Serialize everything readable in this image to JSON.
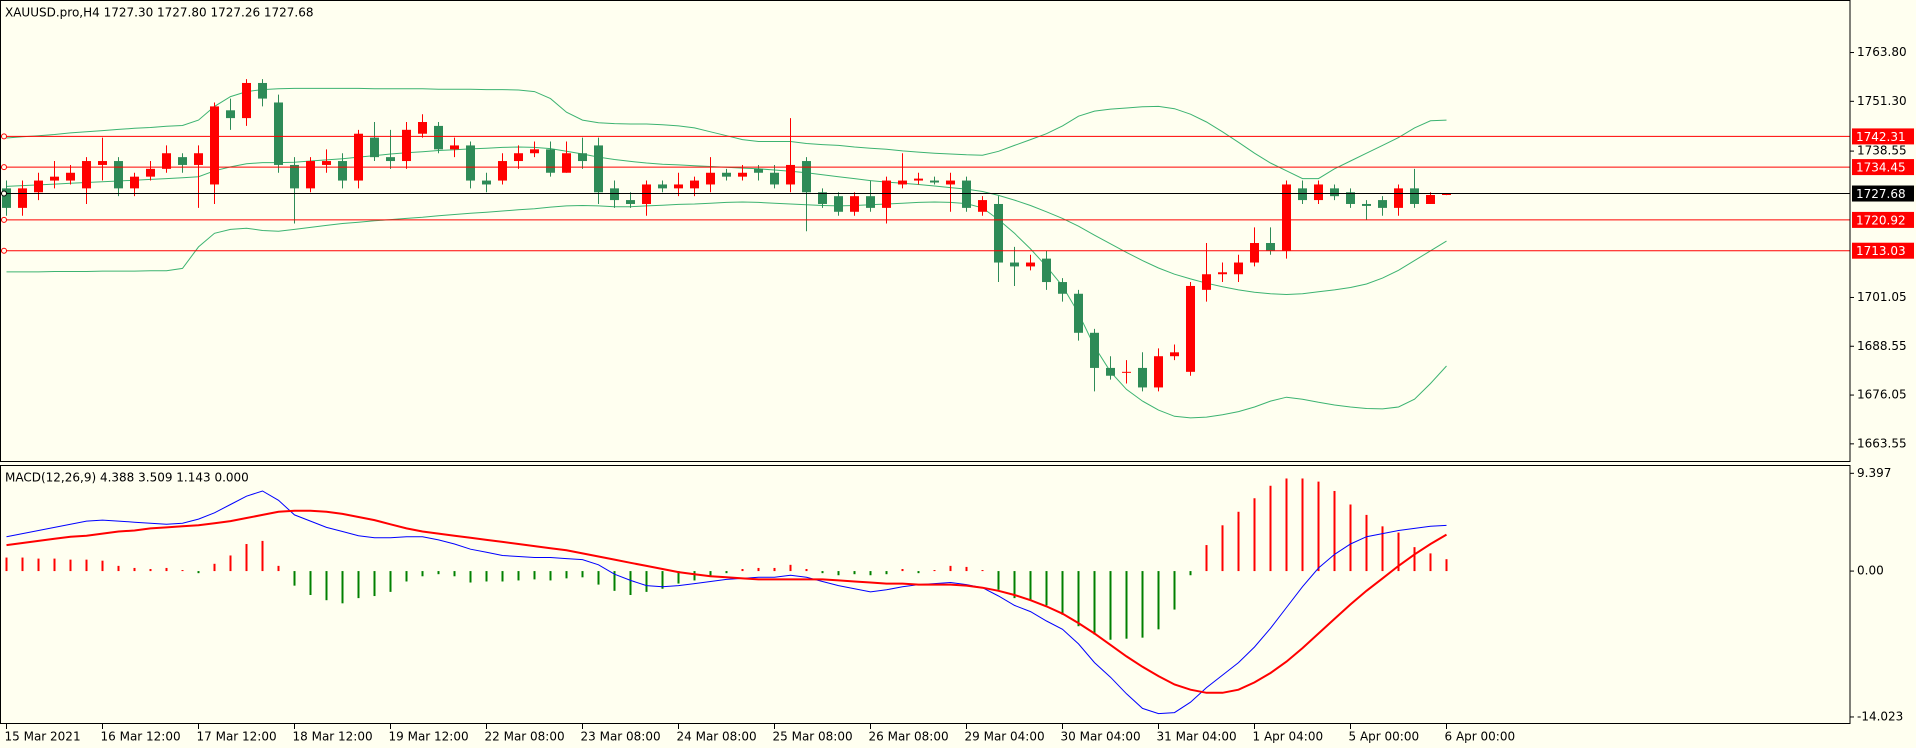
{
  "chart_data": [
    {
      "type": "candlestick",
      "title": "XAUUSD.pro,H4  1727.30 1727.80 1727.26 1727.68",
      "categories": [
        "15 Mar 2021",
        null,
        null,
        null,
        null,
        null,
        "16 Mar 12:00",
        null,
        null,
        null,
        null,
        null,
        "17 Mar 12:00",
        null,
        null,
        null,
        null,
        null,
        "18 Mar 12:00",
        null,
        null,
        null,
        null,
        null,
        "19 Mar 12:00",
        null,
        null,
        null,
        null,
        null,
        "22 Mar 08:00",
        null,
        null,
        null,
        null,
        null,
        "23 Mar 08:00",
        null,
        null,
        null,
        null,
        null,
        "24 Mar 08:00",
        null,
        null,
        null,
        null,
        null,
        "25 Mar 08:00",
        null,
        null,
        null,
        null,
        null,
        "26 Mar 08:00",
        null,
        null,
        null,
        null,
        null,
        "29 Mar 04:00",
        null,
        null,
        null,
        null,
        null,
        "30 Mar 04:00",
        null,
        null,
        null,
        null,
        null,
        "31 Mar 04:00",
        null,
        null,
        null,
        null,
        null,
        "1 Apr 04:00",
        null,
        null,
        null,
        null,
        null,
        "5 Apr 00:00",
        null,
        null,
        null,
        null,
        null,
        "6 Apr 00:00"
      ],
      "open": [
        1729,
        1724,
        1728,
        1731,
        1731,
        1729,
        1735,
        1736,
        1729,
        1732,
        1734,
        1737,
        1735,
        1730,
        1749,
        1747,
        1756,
        1751,
        1735,
        1729,
        1735,
        1736,
        1731,
        1742,
        1737,
        1736,
        1743,
        1745,
        1739,
        1740,
        1731,
        1731,
        1736,
        1738,
        1739,
        1733,
        1738,
        1740,
        1729,
        1726,
        1725,
        1730,
        1729,
        1729,
        1730,
        1733,
        1732,
        1734,
        1733,
        1730,
        1736,
        1728,
        1727,
        1723,
        1727,
        1724,
        1730,
        1731,
        1731,
        1730,
        1731,
        1723,
        1725,
        1710,
        1709,
        1711,
        1705,
        1702,
        1692,
        1683,
        1682,
        1683,
        1678,
        1686,
        1682,
        1703,
        1707,
        1707,
        1710,
        1715,
        1713,
        1729,
        1726,
        1729,
        1728,
        1725,
        1726,
        1724,
        1729,
        1725,
        1727.3
      ],
      "high": [
        1731,
        1731,
        1733,
        1736,
        1735,
        1737,
        1742,
        1737,
        1733,
        1736,
        1740,
        1738,
        1740,
        1751,
        1752,
        1757,
        1757,
        1753,
        1737,
        1737,
        1739,
        1738,
        1744,
        1746,
        1744,
        1746,
        1748,
        1746,
        1742,
        1741,
        1733,
        1738,
        1740,
        1741,
        1741,
        1741,
        1742,
        1742,
        1731,
        1728,
        1731,
        1731,
        1733,
        1732,
        1737,
        1734,
        1735,
        1735,
        1735,
        1747,
        1737,
        1729,
        1728,
        1728,
        1731,
        1732,
        1738,
        1733,
        1732,
        1733,
        1732,
        1727,
        1727,
        1714,
        1712,
        1713,
        1706,
        1703,
        1693,
        1686,
        1685,
        1687,
        1688,
        1689,
        1705,
        1715,
        1710,
        1712,
        1719,
        1719,
        1731,
        1731,
        1731,
        1730,
        1729,
        1726,
        1727,
        1730,
        1734,
        1728,
        1727.8
      ],
      "low": [
        1722,
        1722,
        1726,
        1729,
        1730,
        1725,
        1731,
        1727,
        1727,
        1731,
        1733,
        1733,
        1724,
        1725,
        1744,
        1745,
        1750,
        1733,
        1720,
        1728,
        1733,
        1729,
        1729,
        1736,
        1734,
        1734,
        1742,
        1738,
        1737,
        1729,
        1728,
        1730,
        1734,
        1737,
        1732,
        1733,
        1734,
        1725,
        1724,
        1724,
        1722,
        1728,
        1727,
        1727,
        1728,
        1731,
        1731,
        1731,
        1729,
        1728,
        1718,
        1724,
        1722,
        1722,
        1723,
        1720,
        1729,
        1730,
        1730,
        1723,
        1723,
        1722,
        1705,
        1704,
        1708,
        1703,
        1700,
        1690,
        1677,
        1680,
        1679,
        1677,
        1677,
        1685,
        1681,
        1700,
        1705,
        1705,
        1709,
        1712,
        1711,
        1725,
        1725,
        1726,
        1724,
        1721,
        1722,
        1722,
        1724,
        1725,
        1727.26
      ],
      "close": [
        1724,
        1729,
        1731,
        1732,
        1733,
        1736,
        1736,
        1729,
        1732,
        1734,
        1738,
        1735,
        1738,
        1750,
        1747,
        1756,
        1752,
        1735,
        1729,
        1736,
        1736,
        1731,
        1743,
        1737,
        1736,
        1744,
        1746,
        1739,
        1740,
        1731,
        1730,
        1736,
        1738,
        1739,
        1733,
        1738,
        1736,
        1728,
        1726,
        1725,
        1730,
        1729,
        1730,
        1731,
        1733,
        1732,
        1733,
        1733,
        1730,
        1735,
        1728,
        1725,
        1723,
        1727,
        1724,
        1731,
        1731,
        1731.5,
        1730.5,
        1731,
        1724,
        1726,
        1710,
        1709,
        1710,
        1705,
        1702,
        1692,
        1683,
        1681,
        1682,
        1678,
        1686,
        1687,
        1704,
        1707,
        1707.5,
        1710,
        1715,
        1713,
        1730,
        1726,
        1730,
        1727,
        1725,
        1724.5,
        1724,
        1729,
        1725,
        1727.3,
        1727.68
      ],
      "up_color": "#ff0000",
      "down_color": "#2e8b57",
      "bands": [
        {
          "color": "#3cb371",
          "values": [
            1741.9,
            1742.2,
            1742.5,
            1742.8,
            1743.2,
            1743.5,
            1743.8,
            1744.1,
            1744.4,
            1744.6,
            1744.9,
            1745.1,
            1746.5,
            1750.0,
            1752.5,
            1753.8,
            1754.3,
            1754.5,
            1754.6,
            1754.6,
            1754.6,
            1754.6,
            1754.6,
            1754.5,
            1754.5,
            1754.5,
            1754.5,
            1754.4,
            1754.4,
            1754.4,
            1754.3,
            1754.3,
            1754.2,
            1753.8,
            1752.0,
            1748.5,
            1746.5,
            1745.8,
            1745.6,
            1745.5,
            1745.5,
            1745.3,
            1745.0,
            1744.5,
            1743.5,
            1742.5,
            1741.5,
            1741.0,
            1741.0,
            1741.0,
            1740.5,
            1740.2,
            1740.0,
            1739.6,
            1739.3,
            1739.0,
            1738.6,
            1738.3,
            1738.0,
            1737.8,
            1737.6,
            1737.5,
            1738.5,
            1740.0,
            1741.5,
            1743.0,
            1745.0,
            1747.5,
            1748.8,
            1749.3,
            1749.6,
            1749.9,
            1750.0,
            1749.4,
            1748.0,
            1746.0,
            1743.5,
            1740.8,
            1738.0,
            1735.5,
            1733.5,
            1731.5,
            1731.5,
            1734.0,
            1736.0,
            1738.0,
            1740.0,
            1742.0,
            1744.5,
            1746.3,
            1746.5
          ]
        },
        {
          "color": "#3cb371",
          "values": [
            1729.5,
            1729.7,
            1729.9,
            1730.1,
            1730.3,
            1730.5,
            1730.7,
            1730.9,
            1731.1,
            1731.3,
            1731.5,
            1731.7,
            1732.0,
            1733.5,
            1734.5,
            1735.3,
            1735.6,
            1735.6,
            1735.7,
            1736.0,
            1736.3,
            1736.6,
            1737.0,
            1737.4,
            1737.8,
            1738.1,
            1738.4,
            1738.7,
            1738.9,
            1739.1,
            1739.3,
            1739.5,
            1739.6,
            1739.5,
            1739.2,
            1738.5,
            1737.8,
            1737.0,
            1736.4,
            1735.9,
            1735.5,
            1735.2,
            1735.0,
            1734.8,
            1734.6,
            1734.4,
            1734.2,
            1734.0,
            1733.7,
            1733.4,
            1733.0,
            1732.5,
            1732.0,
            1731.5,
            1731.0,
            1730.6,
            1730.3,
            1730.0,
            1729.6,
            1729.2,
            1728.8,
            1728.2,
            1727.2,
            1726.0,
            1724.6,
            1723.0,
            1721.3,
            1719.3,
            1717.0,
            1714.8,
            1712.6,
            1710.5,
            1708.6,
            1707.0,
            1705.8,
            1704.7,
            1703.8,
            1703.0,
            1702.4,
            1702.0,
            1701.8,
            1702.0,
            1702.5,
            1703.0,
            1703.6,
            1704.5,
            1706.0,
            1708.0,
            1710.5,
            1713.0,
            1715.5
          ]
        },
        {
          "color": "#3cb371",
          "values": [
            1707.6,
            1707.6,
            1707.6,
            1707.7,
            1707.7,
            1707.7,
            1707.8,
            1707.8,
            1707.8,
            1707.9,
            1707.9,
            1708.5,
            1714.0,
            1717.5,
            1718.5,
            1718.8,
            1718.2,
            1718.0,
            1718.5,
            1719.0,
            1719.5,
            1720.0,
            1720.3,
            1720.7,
            1721.0,
            1721.3,
            1721.6,
            1722.0,
            1722.3,
            1722.6,
            1722.9,
            1723.2,
            1723.5,
            1723.8,
            1724.2,
            1724.5,
            1724.6,
            1724.5,
            1724.3,
            1724.3,
            1724.5,
            1724.7,
            1724.9,
            1725.0,
            1725.2,
            1725.4,
            1725.5,
            1725.4,
            1725.2,
            1725.0,
            1724.8,
            1724.6,
            1724.5,
            1724.6,
            1724.8,
            1725.0,
            1725.2,
            1725.4,
            1725.5,
            1725.4,
            1725.1,
            1724.0,
            1721.0,
            1717.5,
            1713.5,
            1709.0,
            1704.0,
            1697.0,
            1688.5,
            1682.0,
            1677.5,
            1674.5,
            1672.2,
            1670.6,
            1670.2,
            1670.4,
            1671.0,
            1671.8,
            1673.0,
            1674.5,
            1675.5,
            1675.0,
            1674.2,
            1673.5,
            1673.0,
            1672.6,
            1672.5,
            1673.0,
            1675.0,
            1679.0,
            1683.5
          ]
        }
      ],
      "levels": [
        {
          "value": 1742.31,
          "color": "#ff0000"
        },
        {
          "value": 1734.45,
          "color": "#ff0000"
        },
        {
          "value": 1720.92,
          "color": "#ff0000"
        },
        {
          "value": 1713.03,
          "color": "#ff0000"
        }
      ],
      "current": {
        "value": 1727.68,
        "color": "#000000"
      },
      "ylim": [
        1658.9,
        1777.0
      ],
      "yticks": [
        {
          "value": 1763.8,
          "label": "1763.80"
        },
        {
          "value": 1751.3,
          "label": "1751.30"
        },
        1738.55,
        1701.05,
        1688.55,
        1676.05,
        1663.55
      ]
    },
    {
      "type": "macd",
      "title": "MACD(12,26,9) 4.388 3.509 1.143 0.000",
      "histogram": {
        "up_color": "#ff0000",
        "down_color": "#008000",
        "values": [
          1.3,
          1.3,
          1.2,
          1.2,
          1.1,
          1.1,
          1.0,
          0.5,
          0.3,
          0.2,
          0.3,
          0.1,
          -0.2,
          0.7,
          1.5,
          2.6,
          2.9,
          0.5,
          -1.4,
          -2.3,
          -2.8,
          -3.1,
          -2.6,
          -2.4,
          -2.0,
          -1.0,
          -0.5,
          -0.3,
          -0.5,
          -1.1,
          -1.0,
          -1.0,
          -0.9,
          -0.8,
          -0.9,
          -0.7,
          -0.6,
          -1.3,
          -1.9,
          -2.3,
          -2.0,
          -1.7,
          -1.2,
          -0.9,
          -0.5,
          -0.2,
          0.2,
          0.3,
          0.3,
          0.6,
          0.2,
          -0.2,
          -0.4,
          -0.3,
          -0.4,
          -0.3,
          0.2,
          -0.2,
          0.1,
          0.5,
          0.4,
          0.1,
          -1.8,
          -2.6,
          -2.8,
          -3.3,
          -4.2,
          -5.3,
          -6.1,
          -6.6,
          -6.5,
          -6.4,
          -5.6,
          -3.7,
          -0.4,
          2.5,
          4.4,
          5.7,
          7.0,
          8.2,
          8.9,
          8.9,
          8.6,
          7.7,
          6.4,
          5.4,
          4.3,
          3.7,
          2.3,
          1.7,
          1.143
        ]
      },
      "series": [
        {
          "color": "#0000ff",
          "values": [
            3.3,
            3.6,
            3.9,
            4.2,
            4.5,
            4.8,
            4.9,
            4.8,
            4.7,
            4.6,
            4.5,
            4.6,
            5.0,
            5.6,
            6.4,
            7.2,
            7.7,
            6.8,
            5.4,
            4.8,
            4.2,
            3.8,
            3.4,
            3.2,
            3.2,
            3.3,
            3.3,
            3.0,
            2.6,
            2.1,
            1.8,
            1.5,
            1.4,
            1.3,
            1.3,
            1.2,
            1.1,
            0.6,
            -0.3,
            -0.9,
            -1.4,
            -1.5,
            -1.4,
            -1.2,
            -1.0,
            -0.8,
            -0.7,
            -0.6,
            -0.6,
            -0.4,
            -0.6,
            -1.0,
            -1.4,
            -1.7,
            -2.0,
            -1.8,
            -1.5,
            -1.3,
            -1.2,
            -1.1,
            -1.3,
            -1.6,
            -2.4,
            -3.3,
            -3.9,
            -4.8,
            -5.6,
            -7.0,
            -8.8,
            -10.2,
            -11.8,
            -13.2,
            -13.7,
            -13.6,
            -12.6,
            -11.2,
            -10.0,
            -8.8,
            -7.3,
            -5.5,
            -3.5,
            -1.5,
            0.3,
            1.6,
            2.6,
            3.3,
            3.6,
            3.9,
            4.1,
            4.3,
            4.388
          ]
        },
        {
          "color": "#ff0000",
          "values": [
            2.5,
            2.7,
            2.9,
            3.1,
            3.3,
            3.4,
            3.6,
            3.8,
            3.9,
            4.1,
            4.2,
            4.3,
            4.4,
            4.6,
            4.8,
            5.1,
            5.4,
            5.7,
            5.8,
            5.8,
            5.7,
            5.5,
            5.2,
            4.9,
            4.5,
            4.1,
            3.8,
            3.6,
            3.4,
            3.2,
            3.0,
            2.8,
            2.6,
            2.4,
            2.2,
            2.0,
            1.7,
            1.4,
            1.1,
            0.8,
            0.5,
            0.2,
            -0.1,
            -0.3,
            -0.5,
            -0.6,
            -0.7,
            -0.8,
            -0.8,
            -0.8,
            -0.8,
            -0.8,
            -0.9,
            -1.0,
            -1.1,
            -1.2,
            -1.2,
            -1.3,
            -1.3,
            -1.3,
            -1.4,
            -1.6,
            -1.9,
            -2.3,
            -2.8,
            -3.4,
            -4.1,
            -5.0,
            -6.0,
            -7.1,
            -8.2,
            -9.2,
            -10.1,
            -10.9,
            -11.4,
            -11.7,
            -11.7,
            -11.4,
            -10.7,
            -9.8,
            -8.7,
            -7.4,
            -6.0,
            -4.6,
            -3.2,
            -1.9,
            -0.7,
            0.5,
            1.6,
            2.6,
            3.509
          ]
        }
      ],
      "ylim": [
        -14.7,
        10.1
      ],
      "yticks": [
        9.397,
        {
          "value": 0,
          "label": "0.00"
        },
        -14.023
      ]
    }
  ]
}
